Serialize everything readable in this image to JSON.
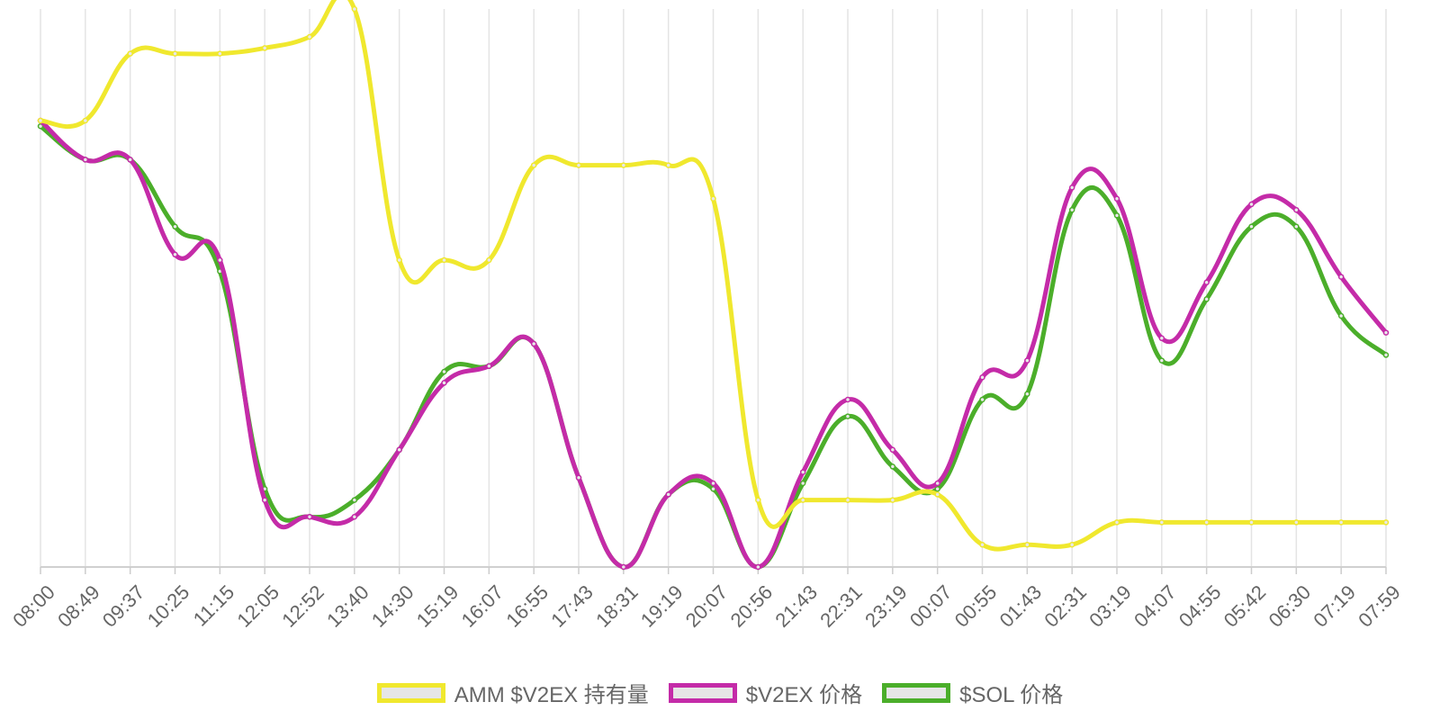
{
  "chart_data": {
    "type": "line",
    "title": "",
    "xlabel": "",
    "ylabel": "",
    "grid": "vertical gridlines only",
    "legend_position": "bottom-center",
    "y_axis_labels": "hidden",
    "categories": [
      "08:00",
      "08:49",
      "09:37",
      "10:25",
      "11:15",
      "12:05",
      "12:52",
      "13:40",
      "14:30",
      "15:19",
      "16:07",
      "16:55",
      "17:43",
      "18:31",
      "19:19",
      "20:07",
      "20:56",
      "21:43",
      "22:31",
      "23:19",
      "00:07",
      "00:55",
      "01:43",
      "02:31",
      "03:19",
      "04:07",
      "04:55",
      "05:42",
      "06:30",
      "07:19",
      "07:59"
    ],
    "series": [
      {
        "name": "AMM $V2EX 持有量",
        "color": "#f0e82e",
        "values": [
          80,
          80,
          92,
          92,
          92,
          93,
          95,
          100,
          55,
          55,
          55,
          72,
          72,
          72,
          72,
          66,
          12,
          12,
          12,
          12,
          13,
          4,
          4,
          4,
          8,
          8,
          8,
          8,
          8,
          8,
          8
        ]
      },
      {
        "name": "$V2EX 价格",
        "color": "#c42ba8",
        "values": [
          80,
          73,
          73,
          56,
          55,
          12,
          9,
          9,
          21,
          33,
          36,
          40,
          16,
          0,
          13,
          15,
          0,
          17,
          30,
          21,
          15,
          34,
          37,
          68,
          66,
          41,
          51,
          65,
          64,
          52,
          42
        ]
      },
      {
        "name": "$SOL 价格",
        "color": "#4bae2a",
        "values": [
          79,
          73,
          73,
          61,
          53,
          14,
          9,
          12,
          21,
          35,
          36,
          40,
          16,
          0,
          13,
          14,
          0,
          15,
          27,
          18,
          14,
          30,
          31,
          64,
          63,
          37,
          48,
          61,
          61,
          45,
          38
        ]
      }
    ]
  }
}
